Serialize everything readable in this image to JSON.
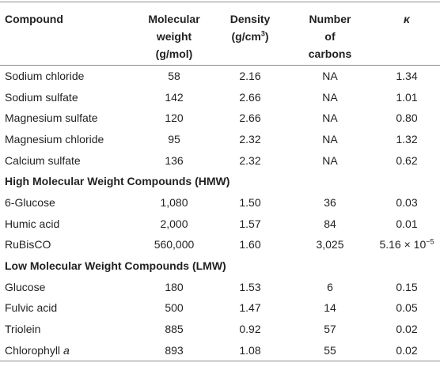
{
  "table": {
    "header": {
      "compound": "Compound",
      "molecular_weight": [
        "Molecular",
        "weight",
        "(g/mol)"
      ],
      "density": [
        "Density",
        "(g/cm",
        "3",
        ")"
      ],
      "carbons": [
        "Number",
        "of",
        "carbons"
      ],
      "kappa": "κ"
    },
    "groups": [
      {
        "rows": [
          [
            "Sodium chloride",
            "58",
            "2.16",
            "NA",
            "1.34"
          ],
          [
            "Sodium sulfate",
            "142",
            "2.66",
            "NA",
            "1.01"
          ],
          [
            "Magnesium sulfate",
            "120",
            "2.66",
            "NA",
            "0.80"
          ],
          [
            "Magnesium chloride",
            "95",
            "2.32",
            "NA",
            "1.32"
          ],
          [
            "Calcium sulfate",
            "136",
            "2.32",
            "NA",
            "0.62"
          ]
        ]
      },
      {
        "title": "High Molecular Weight Compounds (HMW)",
        "rows": [
          [
            "6-Glucose",
            "1,080",
            "1.50",
            "36",
            "0.03"
          ],
          [
            "Humic acid",
            "2,000",
            "1.57",
            "84",
            "0.01"
          ],
          [
            "RuBisCO",
            "560,000",
            "1.60",
            "3,025",
            [
              "5.16 × 10",
              "−5"
            ]
          ]
        ]
      },
      {
        "title": "Low Molecular Weight Compounds (LMW)",
        "rows": [
          [
            "Glucose",
            "180",
            "1.53",
            "6",
            "0.15"
          ],
          [
            "Fulvic acid",
            "500",
            "1.47",
            "14",
            "0.05"
          ],
          [
            "Triolein",
            "885",
            "0.92",
            "57",
            "0.02"
          ],
          [
            [
              "Chlorophyll",
              "a"
            ],
            "893",
            "1.08",
            "55",
            "0.02"
          ]
        ]
      }
    ]
  }
}
